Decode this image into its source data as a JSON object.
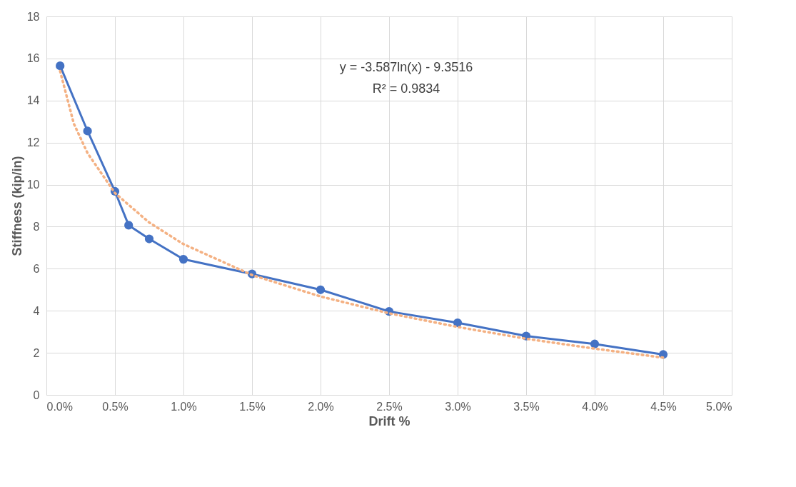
{
  "chart_data": {
    "type": "line",
    "xlabel": "Drift %",
    "ylabel": "Stiffness (kip/in)",
    "x": [
      0.1,
      0.3,
      0.5,
      0.6,
      0.75,
      1.0,
      1.5,
      2.0,
      2.5,
      3.0,
      3.5,
      4.0,
      4.5
    ],
    "series": [
      {
        "color": "#4472c4",
        "values": [
          15.65,
          12.55,
          9.68,
          8.07,
          7.42,
          6.45,
          5.75,
          5.0,
          3.97,
          3.43,
          2.8,
          2.42,
          1.92
        ],
        "marker": "circle",
        "line_style": "solid"
      },
      {
        "type": "line",
        "color": "#f4b183",
        "marker": "none",
        "line_style": "dotted",
        "x": [
          0.1,
          0.2,
          0.3,
          0.5,
          0.75,
          1.0,
          1.5,
          2.0,
          2.5,
          3.0,
          3.5,
          4.0,
          4.5
        ],
        "values": [
          15.4,
          12.9,
          11.5,
          9.6,
          8.2,
          7.17,
          5.7,
          4.68,
          3.88,
          3.23,
          2.67,
          2.2,
          1.77
        ]
      }
    ],
    "xlim": [
      0,
      5
    ],
    "ylim": [
      0,
      18
    ],
    "xticks": [
      {
        "value": 0,
        "label": "0.0%"
      },
      {
        "value": 0.5,
        "label": "0.5%"
      },
      {
        "value": 1,
        "label": "1.0%"
      },
      {
        "value": 1.5,
        "label": "1.5%"
      },
      {
        "value": 2,
        "label": "2.0%"
      },
      {
        "value": 2.5,
        "label": "2.5%"
      },
      {
        "value": 3,
        "label": "3.0%"
      },
      {
        "value": 3.5,
        "label": "3.5%"
      },
      {
        "value": 4,
        "label": "4.0%"
      },
      {
        "value": 4.5,
        "label": "4.5%"
      },
      {
        "value": 5,
        "label": "5.0%"
      }
    ],
    "yticks": [
      0,
      2,
      4,
      6,
      8,
      10,
      12,
      14,
      16,
      18
    ],
    "annotations": [
      "y = -3.587ln(x) - 9.3516",
      "R² = 0.9834"
    ],
    "grid": true
  }
}
